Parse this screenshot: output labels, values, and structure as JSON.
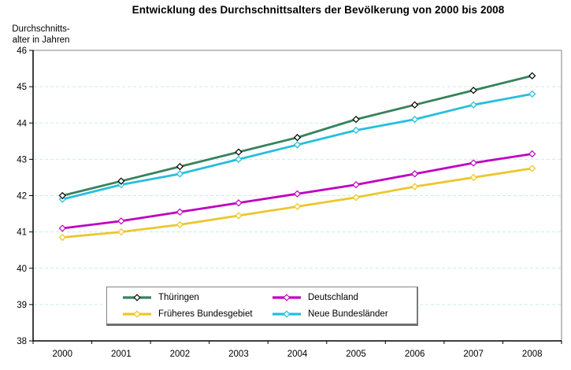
{
  "chart_data": {
    "type": "line",
    "title": "Entwicklung des Durchschnittsalters der Bevölkerung von 2000 bis 2008",
    "ylabel": "Durchschnitts-\nalter in Jahren",
    "xlabel": "",
    "x_categories": [
      "2000",
      "2001",
      "2002",
      "2003",
      "2004",
      "2005",
      "2006",
      "2007",
      "2008"
    ],
    "ylim": [
      38,
      46
    ],
    "y_ticks": [
      38,
      39,
      40,
      41,
      42,
      43,
      44,
      45,
      46
    ],
    "grid": "horizontal-dashed",
    "legend_position": "bottom-center-inside",
    "series": [
      {
        "name": "Thüringen",
        "color": "#37825C",
        "marker_outline": "#000000",
        "marker_fill": "#FFFFFF",
        "values": [
          42.0,
          42.4,
          42.8,
          43.2,
          43.6,
          44.1,
          44.5,
          44.9,
          45.3
        ]
      },
      {
        "name": "Deutschland",
        "color": "#BF00BF",
        "marker_outline": "#BF00BF",
        "marker_fill": "#FFFFFF",
        "values": [
          41.1,
          41.3,
          41.55,
          41.8,
          42.05,
          42.3,
          42.6,
          42.9,
          43.15
        ]
      },
      {
        "name": "Früheres Bundesgebiet",
        "color": "#EDC62E",
        "marker_outline": "#EDC62E",
        "marker_fill": "#FEFBDC",
        "values": [
          40.85,
          41.0,
          41.2,
          41.45,
          41.7,
          41.95,
          42.25,
          42.5,
          42.75
        ]
      },
      {
        "name": "Neue Bundesländer",
        "color": "#25BFDC",
        "marker_outline": "#25BFDC",
        "marker_fill": "#E2F8FC",
        "values": [
          41.9,
          42.3,
          42.6,
          43.0,
          43.4,
          43.8,
          44.1,
          44.5,
          44.8
        ]
      }
    ],
    "colors": {
      "gridline": "#C6EDEA",
      "axis": "#000000",
      "plot_border": "#808080",
      "background": "#FFFFFF"
    }
  }
}
